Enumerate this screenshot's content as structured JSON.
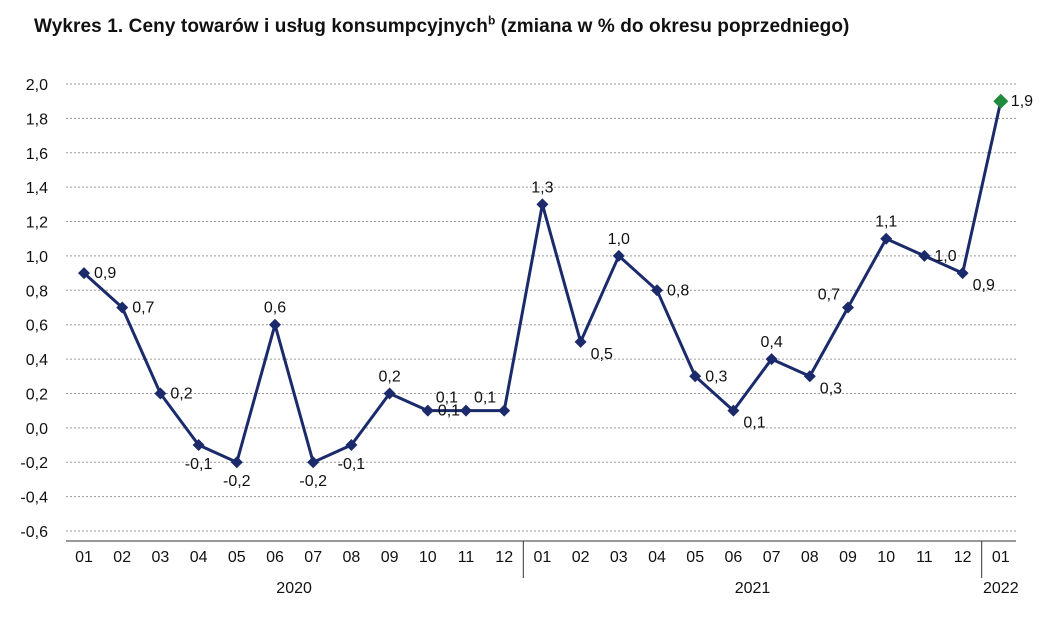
{
  "title": {
    "main": "Wykres 1. Ceny towarów i usług konsumpcyjnych",
    "superscript": "b",
    "suffix": " (zmiana w % do okresu poprzedniego)"
  },
  "colors": {
    "series": "#1b2a6b",
    "highlight": "#1f8a3c",
    "grid": "#9a9a9a",
    "axis": "#333333"
  },
  "chart_data": {
    "type": "line",
    "title": "Wykres 1. Ceny towarów i usług konsumpcyjnychb (zmiana w % do okresu poprzedniego)",
    "xlabel": "",
    "ylabel": "",
    "ylim": [
      -0.6,
      2.0
    ],
    "yticks": [
      "-0,6",
      "-0,4",
      "-0,2",
      "0,0",
      "0,2",
      "0,4",
      "0,6",
      "0,8",
      "1,0",
      "1,2",
      "1,4",
      "1,6",
      "1,8",
      "2,0"
    ],
    "grid": true,
    "categories": [
      "01",
      "02",
      "03",
      "04",
      "05",
      "06",
      "07",
      "08",
      "09",
      "10",
      "11",
      "12",
      "01",
      "02",
      "03",
      "04",
      "05",
      "06",
      "07",
      "08",
      "09",
      "10",
      "11",
      "12",
      "01"
    ],
    "year_groups": [
      {
        "label": "2020",
        "start": 0,
        "end": 11
      },
      {
        "label": "2021",
        "start": 12,
        "end": 23
      },
      {
        "label": "2022",
        "start": 24,
        "end": 24
      }
    ],
    "series": [
      {
        "values": [
          0.9,
          0.7,
          0.2,
          -0.1,
          -0.2,
          0.6,
          -0.2,
          -0.1,
          0.2,
          0.1,
          0.1,
          0.1,
          1.3,
          0.5,
          1.0,
          0.8,
          0.3,
          0.1,
          0.4,
          0.3,
          0.7,
          1.1,
          1.0,
          0.9,
          1.9
        ],
        "data_labels": [
          "0,9",
          "0,7",
          "0,2",
          "-0,1",
          "-0,2",
          "0,6",
          "-0,2",
          "-0,1",
          "0,2",
          "0,1",
          "0,1",
          "0,1",
          "1,3",
          "0,5",
          "1,0",
          "0,8",
          "0,3",
          "0,1",
          "0,4",
          "0,3",
          "0,7",
          "1,1",
          "1,0",
          "0,9",
          "1,9"
        ],
        "highlight_index": 24
      }
    ]
  }
}
